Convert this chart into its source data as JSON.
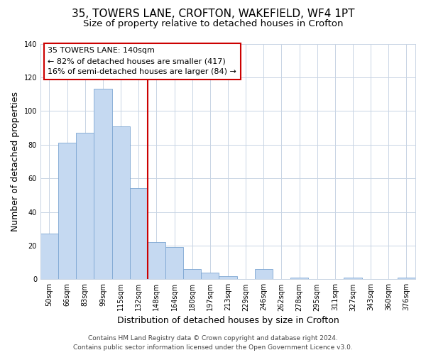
{
  "title": "35, TOWERS LANE, CROFTON, WAKEFIELD, WF4 1PT",
  "subtitle": "Size of property relative to detached houses in Crofton",
  "xlabel": "Distribution of detached houses by size in Crofton",
  "ylabel": "Number of detached properties",
  "bar_labels": [
    "50sqm",
    "66sqm",
    "83sqm",
    "99sqm",
    "115sqm",
    "132sqm",
    "148sqm",
    "164sqm",
    "180sqm",
    "197sqm",
    "213sqm",
    "229sqm",
    "246sqm",
    "262sqm",
    "278sqm",
    "295sqm",
    "311sqm",
    "327sqm",
    "343sqm",
    "360sqm",
    "376sqm"
  ],
  "bar_values": [
    27,
    81,
    87,
    113,
    91,
    54,
    22,
    19,
    6,
    4,
    2,
    0,
    6,
    0,
    1,
    0,
    0,
    1,
    0,
    0,
    1
  ],
  "bar_color": "#c5d9f1",
  "bar_edge_color": "#7da6d3",
  "vline_x": 6,
  "vline_color": "#cc0000",
  "ylim": [
    0,
    140
  ],
  "yticks": [
    0,
    20,
    40,
    60,
    80,
    100,
    120,
    140
  ],
  "annotation_title": "35 TOWERS LANE: 140sqm",
  "annotation_line1": "← 82% of detached houses are smaller (417)",
  "annotation_line2": "16% of semi-detached houses are larger (84) →",
  "annotation_box_color": "#ffffff",
  "annotation_box_edge_color": "#cc0000",
  "footer1": "Contains HM Land Registry data © Crown copyright and database right 2024.",
  "footer2": "Contains public sector information licensed under the Open Government Licence v3.0.",
  "background_color": "#ffffff",
  "grid_color": "#c8d4e4",
  "title_fontsize": 11,
  "subtitle_fontsize": 9.5,
  "axis_label_fontsize": 9,
  "tick_fontsize": 7,
  "annotation_fontsize": 8,
  "footer_fontsize": 6.5
}
